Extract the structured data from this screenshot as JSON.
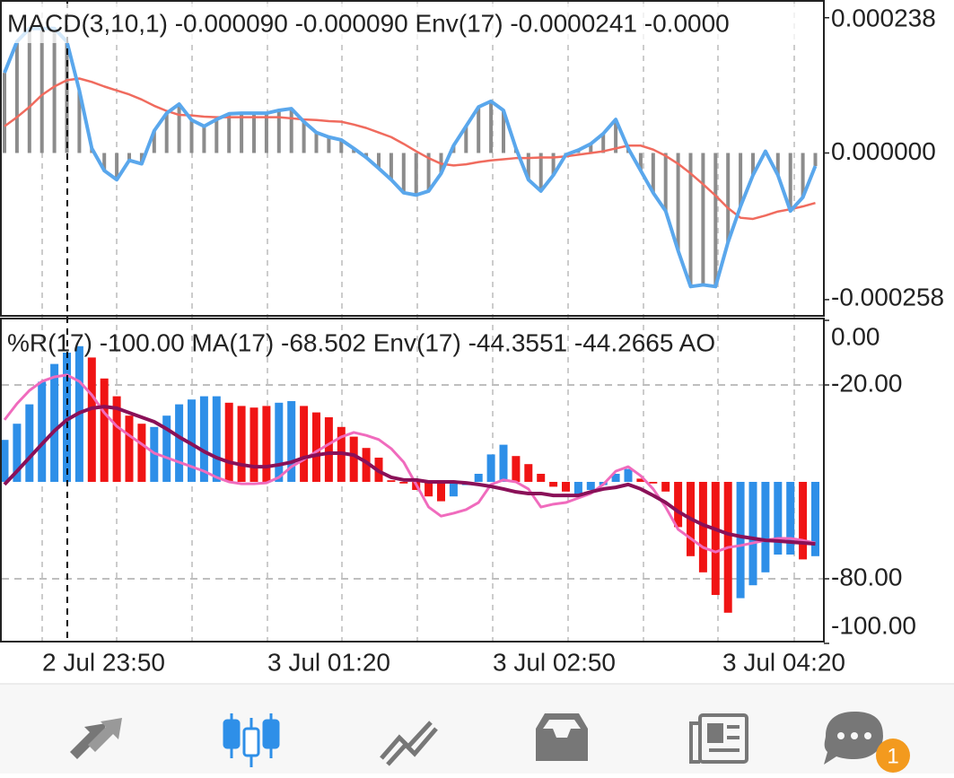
{
  "macd_panel": {
    "type": "bar",
    "title": "MACD(3,10,1) -0.000090 -0.000090 Env(17) -0.0000241 -0.0000",
    "ylim": [
      -0.000285,
      0.000266
    ],
    "yticks": [
      {
        "value": 0.000238,
        "label": "0.000238"
      },
      {
        "value": 0,
        "label": "0.000000"
      },
      {
        "value": -0.000258,
        "label": "-0.000258"
      }
    ],
    "color": "#8c8c8c",
    "line_color": "#5aa7ec",
    "signal_color": "#f06b5e",
    "values": [
      0.000141,
      0.000196,
      0.000219,
      0.000219,
      0.000219,
      0.000196,
      0.00011,
      8e-06,
      -3.1e-05,
      -4.7e-05,
      -1.3e-05,
      -1.9e-05,
      3.9e-05,
      7e-05,
      8.6e-05,
      5.8e-05,
      4.7e-05,
      5.9e-05,
      6.9e-05,
      7e-05,
      7e-05,
      7e-05,
      7.5e-05,
      7.8e-05,
      5.5e-05,
      3.6e-05,
      2.8e-05,
      2.3e-05,
      8e-06,
      -8e-06,
      -2.7e-05,
      -4.7e-05,
      -7e-05,
      -7.4e-05,
      -6.7e-05,
      -3.6e-05,
      1.3e-05,
      4.7e-05,
      8.1e-05,
      9.1e-05,
      7.5e-05,
      8e-06,
      -4.7e-05,
      -6.7e-05,
      -3.9e-05,
      -3e-06,
      5e-06,
      1.6e-05,
      3.4e-05,
      5.9e-05,
      8e-06,
      -3.1e-05,
      -7e-05,
      -0.000102,
      -0.000172,
      -0.000235,
      -0.000232,
      -0.000235,
      -0.000157,
      -9.4e-05,
      -3.9e-05,
      3e-06,
      -3.9e-05,
      -0.000102,
      -7.8e-05,
      -2.3e-05
    ],
    "signal": [
      4.7e-05,
      6.3e-05,
      8.1e-05,
      0.000102,
      0.000117,
      0.000128,
      0.000131,
      0.000125,
      0.000117,
      0.00011,
      0.000103,
      9.4e-05,
      8.3e-05,
      7.4e-05,
      6.7e-05,
      6.6e-05,
      6.4e-05,
      6.3e-05,
      6.3e-05,
      6.3e-05,
      6.3e-05,
      6.3e-05,
      6.3e-05,
      6.1e-05,
      5.9e-05,
      5.8e-05,
      5.6e-05,
      5.5e-05,
      5e-05,
      4.4e-05,
      3.6e-05,
      2.8e-05,
      1.6e-05,
      3e-06,
      -9e-06,
      -1.9e-05,
      -2.2e-05,
      -2e-05,
      -1.6e-05,
      -1.3e-05,
      -1.1e-05,
      -9e-06,
      -9e-06,
      -8e-06,
      -8e-06,
      -6e-06,
      -3e-06,
      0,
      3e-06,
      8e-06,
      1.3e-05,
      1.3e-05,
      6e-06,
      -5e-06,
      -1.9e-05,
      -3.6e-05,
      -5.5e-05,
      -7.5e-05,
      -9.7e-05,
      -0.000114,
      -0.000116,
      -0.00011,
      -0.000103,
      -9.9e-05,
      -9.4e-05,
      -8.8e-05
    ]
  },
  "wpr_panel": {
    "type": "bar",
    "title": "%R(17) -100.00 MA(17) -68.502 Env(17) -44.3551 -44.2665 AO",
    "ylim": [
      -100,
      0
    ],
    "yticks": [
      {
        "value": 0,
        "label": "0.00"
      },
      {
        "value": -20,
        "label": "-20.00"
      },
      {
        "value": -80,
        "label": "-80.00"
      },
      {
        "value": -100,
        "label": "-100.00"
      }
    ],
    "ao_ylim": [
      -1,
      1
    ],
    "ao": [
      0.26,
      0.36,
      0.48,
      0.62,
      0.73,
      0.8,
      0.84,
      0.77,
      0.64,
      0.53,
      0.41,
      0.36,
      0.34,
      0.41,
      0.48,
      0.51,
      0.53,
      0.53,
      0.49,
      0.47,
      0.46,
      0.47,
      0.49,
      0.5,
      0.47,
      0.43,
      0.4,
      0.34,
      0.28,
      0.21,
      0.15,
      0.01,
      -0.01,
      -0.05,
      -0.09,
      -0.12,
      -0.09,
      -0.02,
      0.05,
      0.17,
      0.23,
      0.16,
      0.11,
      0.05,
      -0.03,
      -0.06,
      -0.09,
      -0.05,
      -0.02,
      0.05,
      0.08,
      0.02,
      -0.01,
      -0.06,
      -0.28,
      -0.46,
      -0.56,
      -0.7,
      -0.81,
      -0.72,
      -0.64,
      -0.56,
      -0.45,
      -0.45,
      -0.48,
      -0.46
    ],
    "ao_colors": [
      "#2e8fe8",
      "#2e8fe8",
      "#2e8fe8",
      "#2e8fe8",
      "#2e8fe8",
      "#2e8fe8",
      "#2e8fe8",
      "#f01414",
      "#f01414",
      "#f01414",
      "#f01414",
      "#f01414",
      "#2e8fe8",
      "#2e8fe8",
      "#2e8fe8",
      "#2e8fe8",
      "#2e8fe8",
      "#2e8fe8",
      "#f01414",
      "#f01414",
      "#f01414",
      "#f01414",
      "#2e8fe8",
      "#2e8fe8",
      "#f01414",
      "#f01414",
      "#f01414",
      "#f01414",
      "#f01414",
      "#f01414",
      "#f01414",
      "#f01414",
      "#f01414",
      "#f01414",
      "#f01414",
      "#f01414",
      "#2e8fe8",
      "#2e8fe8",
      "#2e8fe8",
      "#2e8fe8",
      "#2e8fe8",
      "#f01414",
      "#f01414",
      "#f01414",
      "#f01414",
      "#f01414",
      "#2e8fe8",
      "#2e8fe8",
      "#2e8fe8",
      "#2e8fe8",
      "#2e8fe8",
      "#f01414",
      "#f01414",
      "#f01414",
      "#f01414",
      "#f01414",
      "#f01414",
      "#f01414",
      "#f01414",
      "#2e8fe8",
      "#2e8fe8",
      "#2e8fe8",
      "#2e8fe8",
      "#2e8fe8",
      "#f01414",
      "#2e8fe8"
    ],
    "ma_color": "#f06bbd",
    "env_color": "#8a1058",
    "ma": [
      -30.8,
      -25.8,
      -21.7,
      -18.9,
      -17.5,
      -16.9,
      -18.9,
      -23.1,
      -28.6,
      -32.8,
      -35.6,
      -38.3,
      -41.1,
      -42.5,
      -43.9,
      -45.3,
      -46.7,
      -48.6,
      -50,
      -50.6,
      -50.6,
      -50.3,
      -48.6,
      -45.3,
      -43.1,
      -40.6,
      -38.3,
      -36.1,
      -34.7,
      -35.6,
      -36.9,
      -39.7,
      -43.9,
      -50.8,
      -57.8,
      -60.6,
      -59.7,
      -58.6,
      -56.4,
      -50.8,
      -49.4,
      -50,
      -52.2,
      -57.8,
      -56.9,
      -56.4,
      -55,
      -53.6,
      -50.8,
      -46.7,
      -45.3,
      -48.1,
      -52.2,
      -57.8,
      -64.7,
      -67.5,
      -70.3,
      -71.7,
      -70.3,
      -69.7,
      -68.9,
      -68.1,
      -67.5,
      -67.5,
      -68.1,
      -68.9
    ],
    "env": [
      -50.8,
      -46.7,
      -42.5,
      -38.3,
      -34.2,
      -30.8,
      -28.6,
      -27.2,
      -26.7,
      -27.2,
      -28.6,
      -30,
      -31.4,
      -33.6,
      -36.1,
      -38.3,
      -40.6,
      -42.5,
      -43.9,
      -44.7,
      -45.3,
      -45.3,
      -44.7,
      -43.9,
      -42.5,
      -41.7,
      -41.1,
      -41.1,
      -41.7,
      -43.9,
      -46.7,
      -48.6,
      -49.4,
      -49.4,
      -50,
      -50,
      -50,
      -50.3,
      -50.8,
      -51.4,
      -52.2,
      -53.1,
      -53.6,
      -53.6,
      -54.2,
      -54.2,
      -54.2,
      -53.1,
      -52.2,
      -51.7,
      -50.8,
      -52.2,
      -54.2,
      -56.4,
      -59.2,
      -61.4,
      -63.3,
      -64.7,
      -66.1,
      -66.9,
      -67.5,
      -68.1,
      -68.3,
      -68.6,
      -68.9,
      -69.2
    ]
  },
  "time_axis": {
    "labels": [
      "2 Jul 23:50",
      "3 Jul 01:20",
      "3 Jul 02:50",
      "3 Jul 04:20"
    ]
  },
  "nav": {
    "badge": "1"
  }
}
